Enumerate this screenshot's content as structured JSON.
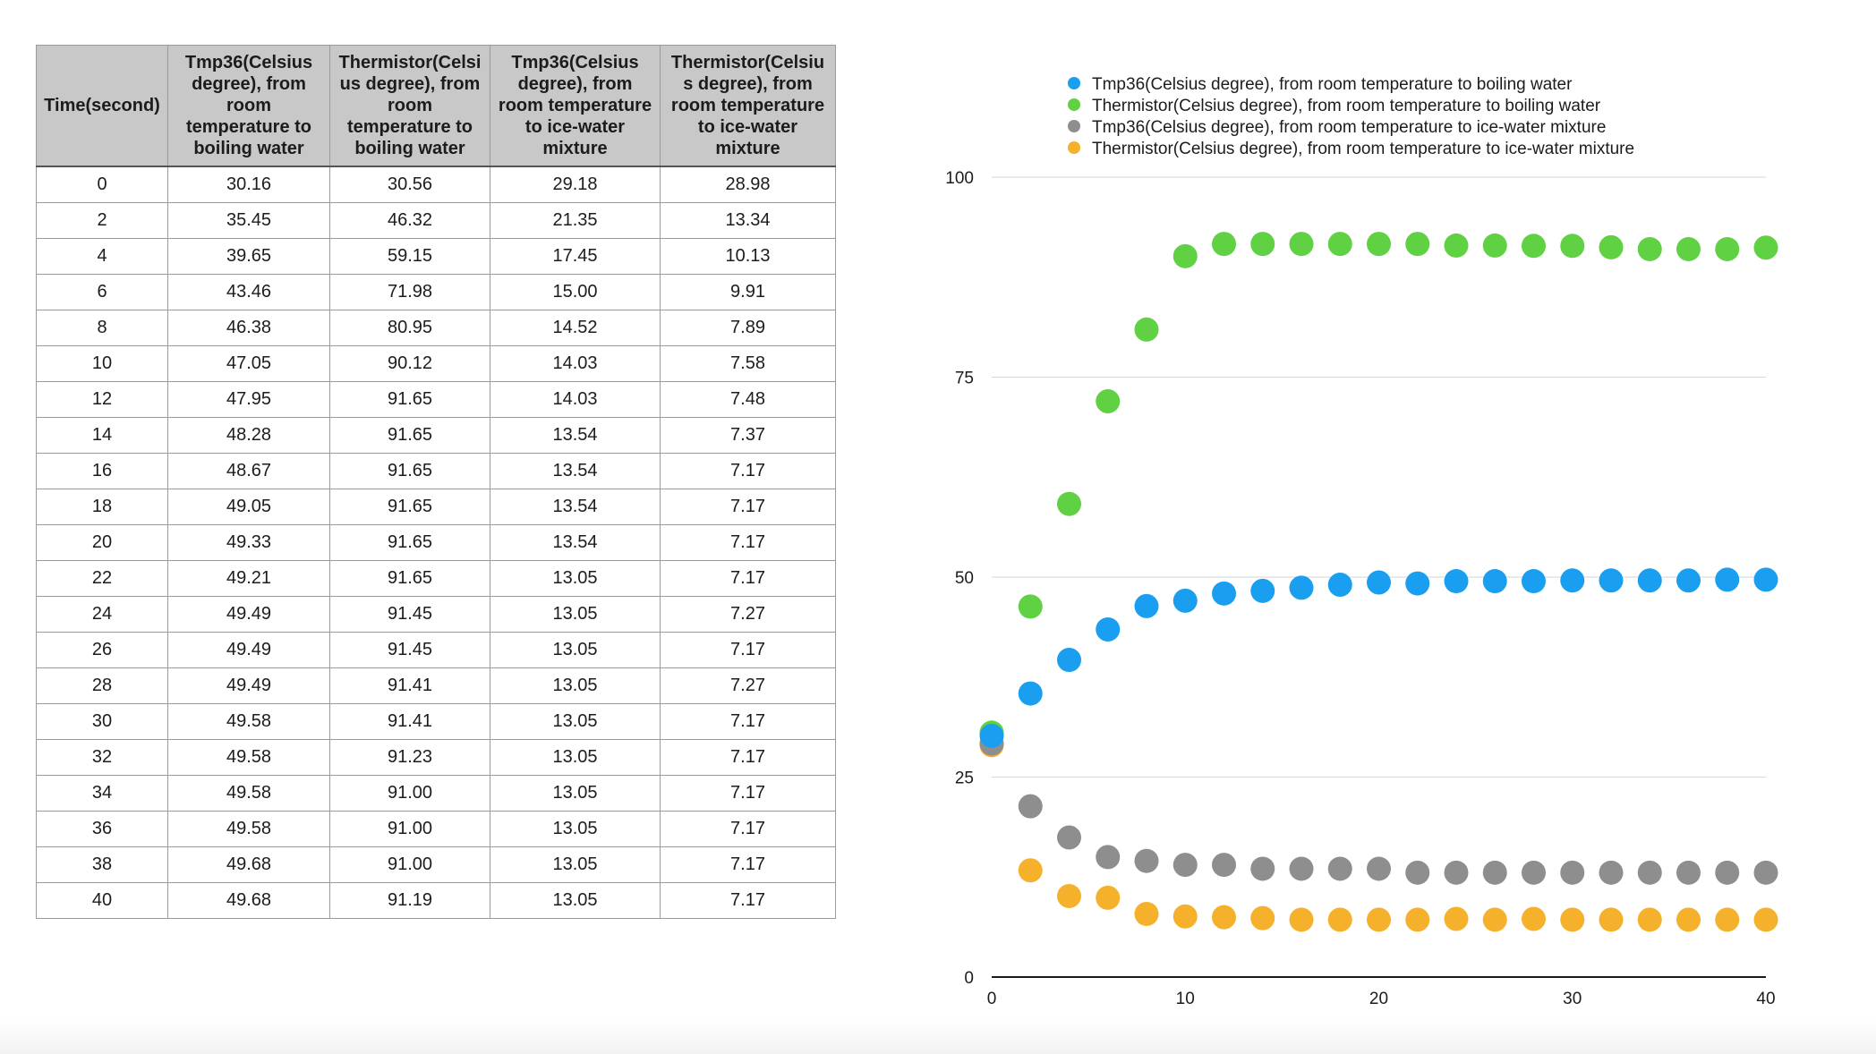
{
  "table": {
    "headers": [
      "Time(second)",
      "Tmp36(Celsius degree), from room temperature to boiling water",
      "Thermistor(Celsius degree), from room temperature to boiling water",
      "Tmp36(Celsius degree), from room temperature to ice-water mixture",
      "Thermistor(Celsius degree), from room temperature to ice-water mixture"
    ],
    "header_lines": [
      [
        "Time(second)"
      ],
      [
        "Tmp36(Celsius",
        "degree), from",
        "room",
        "temperature to",
        "boiling water"
      ],
      [
        "Thermistor(Celsi",
        "us degree), from",
        "room",
        "temperature to",
        "boiling water"
      ],
      [
        "Tmp36(Celsius",
        "degree), from",
        "room temperature",
        "to ice-water",
        "mixture"
      ],
      [
        "Thermistor(Celsiu",
        "s degree), from",
        "room temperature",
        "to ice-water",
        "mixture"
      ]
    ],
    "rows": [
      [
        "0",
        "30.16",
        "30.56",
        "29.18",
        "28.98"
      ],
      [
        "2",
        "35.45",
        "46.32",
        "21.35",
        "13.34"
      ],
      [
        "4",
        "39.65",
        "59.15",
        "17.45",
        "10.13"
      ],
      [
        "6",
        "43.46",
        "71.98",
        "15.00",
        "9.91"
      ],
      [
        "8",
        "46.38",
        "80.95",
        "14.52",
        "7.89"
      ],
      [
        "10",
        "47.05",
        "90.12",
        "14.03",
        "7.58"
      ],
      [
        "12",
        "47.95",
        "91.65",
        "14.03",
        "7.48"
      ],
      [
        "14",
        "48.28",
        "91.65",
        "13.54",
        "7.37"
      ],
      [
        "16",
        "48.67",
        "91.65",
        "13.54",
        "7.17"
      ],
      [
        "18",
        "49.05",
        "91.65",
        "13.54",
        "7.17"
      ],
      [
        "20",
        "49.33",
        "91.65",
        "13.54",
        "7.17"
      ],
      [
        "22",
        "49.21",
        "91.65",
        "13.05",
        "7.17"
      ],
      [
        "24",
        "49.49",
        "91.45",
        "13.05",
        "7.27"
      ],
      [
        "26",
        "49.49",
        "91.45",
        "13.05",
        "7.17"
      ],
      [
        "28",
        "49.49",
        "91.41",
        "13.05",
        "7.27"
      ],
      [
        "30",
        "49.58",
        "91.41",
        "13.05",
        "7.17"
      ],
      [
        "32",
        "49.58",
        "91.23",
        "13.05",
        "7.17"
      ],
      [
        "34",
        "49.58",
        "91.00",
        "13.05",
        "7.17"
      ],
      [
        "36",
        "49.58",
        "91.00",
        "13.05",
        "7.17"
      ],
      [
        "38",
        "49.68",
        "91.00",
        "13.05",
        "7.17"
      ],
      [
        "40",
        "49.68",
        "91.19",
        "13.05",
        "7.17"
      ]
    ]
  },
  "chart_data": {
    "type": "scatter",
    "title": "",
    "xlabel": "",
    "ylabel": "",
    "xlim": [
      0,
      40
    ],
    "ylim": [
      0,
      100
    ],
    "xticks": [
      0,
      10,
      20,
      30,
      40
    ],
    "yticks": [
      0,
      25,
      50,
      75,
      100
    ],
    "grid": "horizontal",
    "legend_position": "top",
    "x": [
      0,
      2,
      4,
      6,
      8,
      10,
      12,
      14,
      16,
      18,
      20,
      22,
      24,
      26,
      28,
      30,
      32,
      34,
      36,
      38,
      40
    ],
    "series": [
      {
        "name": "Tmp36(Celsius degree), from room temperature to boiling water",
        "color": "#1a9ff0",
        "values": [
          30.16,
          35.45,
          39.65,
          43.46,
          46.38,
          47.05,
          47.95,
          48.28,
          48.67,
          49.05,
          49.33,
          49.21,
          49.49,
          49.49,
          49.49,
          49.58,
          49.58,
          49.58,
          49.58,
          49.68,
          49.68
        ]
      },
      {
        "name": "Thermistor(Celsius degree), from room temperature to boiling water",
        "color": "#5fd142",
        "values": [
          30.56,
          46.32,
          59.15,
          71.98,
          80.95,
          90.12,
          91.65,
          91.65,
          91.65,
          91.65,
          91.65,
          91.65,
          91.45,
          91.45,
          91.41,
          91.41,
          91.23,
          91.0,
          91.0,
          91.0,
          91.19
        ]
      },
      {
        "name": "Tmp36(Celsius degree), from room temperature to ice-water mixture",
        "color": "#8e8e8e",
        "values": [
          29.18,
          21.35,
          17.45,
          15.0,
          14.52,
          14.03,
          14.03,
          13.54,
          13.54,
          13.54,
          13.54,
          13.05,
          13.05,
          13.05,
          13.05,
          13.05,
          13.05,
          13.05,
          13.05,
          13.05,
          13.05
        ]
      },
      {
        "name": "Thermistor(Celsius degree), from room temperature to ice-water mixture",
        "color": "#f5b12c",
        "values": [
          28.98,
          13.34,
          10.13,
          9.91,
          7.89,
          7.58,
          7.48,
          7.37,
          7.17,
          7.17,
          7.17,
          7.17,
          7.27,
          7.17,
          7.27,
          7.17,
          7.17,
          7.17,
          7.17,
          7.17,
          7.17
        ]
      }
    ]
  }
}
